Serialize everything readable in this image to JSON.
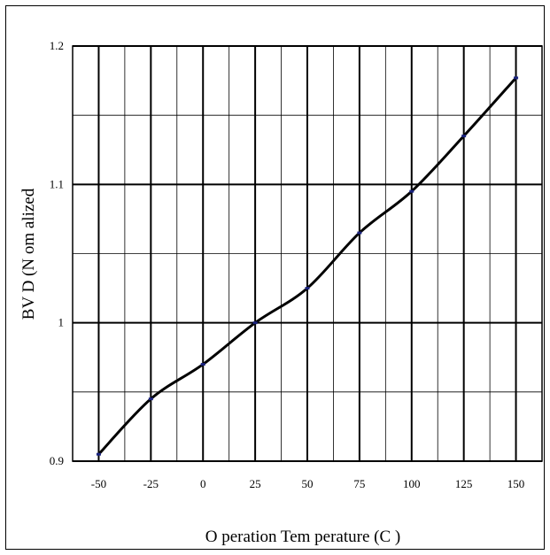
{
  "chart_data": {
    "type": "line",
    "title": "",
    "xlabel": "O peration Tem perature (C )",
    "ylabel": "BV D (N om alized",
    "x_ticks": [
      "-50",
      "-25",
      "0",
      "25",
      "50",
      "75",
      "100",
      "125",
      "150"
    ],
    "y_ticks": [
      "0.9",
      "1",
      "1.1",
      "1.2"
    ],
    "xlim": [
      -50,
      150
    ],
    "ylim": [
      0.9,
      1.2
    ],
    "grid": true,
    "line_color": "#000000",
    "marker_color": "#1a237e",
    "series": [
      {
        "x": [
          -50,
          -25,
          0,
          25,
          50,
          75,
          100,
          125,
          150
        ],
        "y": [
          0.905,
          0.945,
          0.97,
          1.0,
          1.025,
          1.065,
          1.095,
          1.135,
          1.177
        ]
      }
    ]
  }
}
